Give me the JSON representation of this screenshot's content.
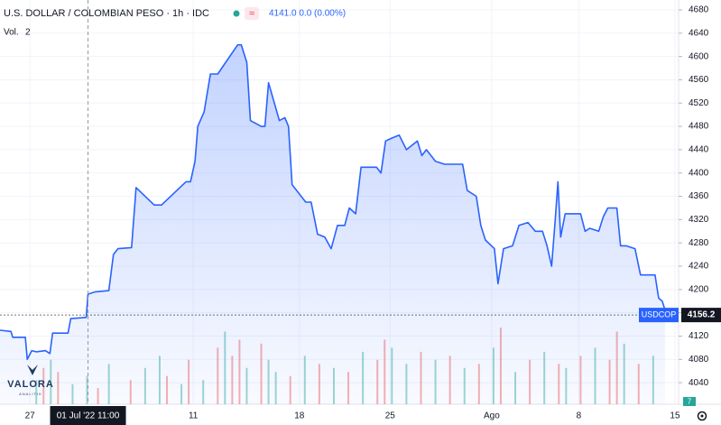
{
  "header": {
    "title": "U.S. DOLLAR / COLOMBIAN PESO · 1h · IDC",
    "quote": "4141.0  0.0 (0.00%)",
    "volume_label": "Vol.",
    "volume_period": "2"
  },
  "logo": {
    "name": "VALORA",
    "tagline": "ANALITIK"
  },
  "badge": "7",
  "chart_data": {
    "type": "area",
    "series": [
      {
        "name": "USDCOP",
        "color": "#2962ff",
        "x": [
          0,
          3,
          3.5,
          7,
          7.5,
          8.75,
          10,
          12.5,
          13.75,
          14.5,
          18.75,
          19.5,
          23.75,
          24.25,
          26.25,
          30,
          31.25,
          32.5,
          36.25,
          37.5,
          42.5,
          44.5,
          51.25,
          52.5,
          53.75,
          54.5,
          56.25,
          58,
          60,
          65.5,
          66.5,
          68,
          69,
          72,
          73,
          74,
          77,
          78.5,
          79.5,
          80.5,
          84.25,
          85.75,
          87.5,
          89.5,
          91.25,
          93,
          95,
          96.25,
          98,
          99.5,
          103.75,
          105,
          106.25,
          108,
          110,
          112,
          115,
          116.25,
          117.5,
          120,
          122.5,
          127.5,
          128.75,
          131.25,
          132.5,
          133.75,
          136.25,
          137.25,
          138.75,
          141.25,
          143,
          145.5,
          147.5,
          149.5,
          150.75,
          152,
          153,
          153.75,
          154.5,
          155.75,
          160,
          161.25,
          162.5,
          165,
          166.25,
          167.5,
          170,
          171,
          172.5,
          175,
          176.5,
          180.5,
          181.5,
          182.5,
          183.25
        ],
        "values": [
          4130,
          4128,
          4118,
          4118,
          4080,
          4095,
          4093,
          4095,
          4090,
          4125,
          4125,
          4150,
          4152,
          4192,
          4196,
          4198,
          4260,
          4270,
          4272,
          4375,
          4345,
          4345,
          4385,
          4385,
          4420,
          4480,
          4505,
          4570,
          4570,
          4620,
          4620,
          4590,
          4490,
          4480,
          4480,
          4555,
          4490,
          4495,
          4480,
          4380,
          4350,
          4350,
          4295,
          4290,
          4270,
          4310,
          4310,
          4340,
          4330,
          4410,
          4410,
          4400,
          4455,
          4460,
          4465,
          4440,
          4455,
          4430,
          4440,
          4420,
          4415,
          4415,
          4370,
          4360,
          4310,
          4285,
          4270,
          4210,
          4270,
          4275,
          4310,
          4315,
          4300,
          4300,
          4275,
          4240,
          4320,
          4385,
          4290,
          4330,
          4330,
          4300,
          4305,
          4300,
          4325,
          4340,
          4340,
          4275,
          4275,
          4270,
          4225,
          4225,
          4185,
          4180,
          4165
        ]
      }
    ],
    "volume": {
      "x": [
        10,
        12,
        14,
        16,
        20,
        24,
        27,
        30,
        36,
        40,
        44,
        46,
        50,
        52,
        56,
        60,
        62,
        64,
        66,
        68,
        72,
        74,
        76,
        80,
        84,
        88,
        92,
        96,
        100,
        104,
        106,
        108,
        112,
        116,
        120,
        124,
        128,
        132,
        136,
        138,
        142,
        146,
        150,
        154,
        156,
        160,
        164,
        168,
        170,
        172,
        176,
        180
      ],
      "values": [
        30,
        45,
        55,
        40,
        25,
        35,
        20,
        50,
        30,
        45,
        60,
        35,
        25,
        55,
        30,
        70,
        90,
        60,
        80,
        45,
        75,
        55,
        40,
        35,
        60,
        50,
        45,
        40,
        65,
        55,
        80,
        70,
        50,
        65,
        55,
        60,
        45,
        50,
        70,
        95,
        40,
        55,
        65,
        50,
        45,
        60,
        70,
        55,
        90,
        75,
        50,
        60
      ],
      "colors": [
        "#26a69a",
        "#ef5350",
        "#26a69a",
        "#ef5350",
        "#26a69a",
        "#26a69a",
        "#ef5350",
        "#26a69a",
        "#ef5350",
        "#26a69a",
        "#26a69a",
        "#ef5350",
        "#26a69a",
        "#ef5350",
        "#26a69a",
        "#ef5350",
        "#26a69a",
        "#ef5350",
        "#ef5350",
        "#26a69a",
        "#ef5350",
        "#26a69a",
        "#26a69a",
        "#ef5350",
        "#26a69a",
        "#ef5350",
        "#26a69a",
        "#ef5350",
        "#26a69a",
        "#ef5350",
        "#ef5350",
        "#26a69a",
        "#26a69a",
        "#ef5350",
        "#26a69a",
        "#ef5350",
        "#26a69a",
        "#ef5350",
        "#26a69a",
        "#ef5350",
        "#26a69a",
        "#ef5350",
        "#26a69a",
        "#ef5350",
        "#26a69a",
        "#ef5350",
        "#26a69a",
        "#ef5350",
        "#ef5350",
        "#26a69a",
        "#ef5350",
        "#26a69a"
      ]
    },
    "xlim": [
      0,
      187
    ],
    "ylim": [
      4003,
      4697
    ],
    "yticks": [
      4040,
      4080,
      4120,
      4160,
      4200,
      4240,
      4280,
      4320,
      4360,
      4400,
      4440,
      4480,
      4520,
      4560,
      4600,
      4640,
      4680
    ],
    "xticks": [
      {
        "value": 8.25,
        "label": "27"
      },
      {
        "value": 53.25,
        "label": "11"
      },
      {
        "value": 82.5,
        "label": "18"
      },
      {
        "value": 107.5,
        "label": "25"
      },
      {
        "value": 135.5,
        "label": "Ago"
      },
      {
        "value": 159.5,
        "label": "8"
      },
      {
        "value": 186,
        "label": "15"
      }
    ],
    "crosshair": {
      "x": 24.25,
      "label": "01 Jul '22 11:00"
    },
    "last_price": 4156.2,
    "symbol": "USDCOP",
    "grid": true
  }
}
